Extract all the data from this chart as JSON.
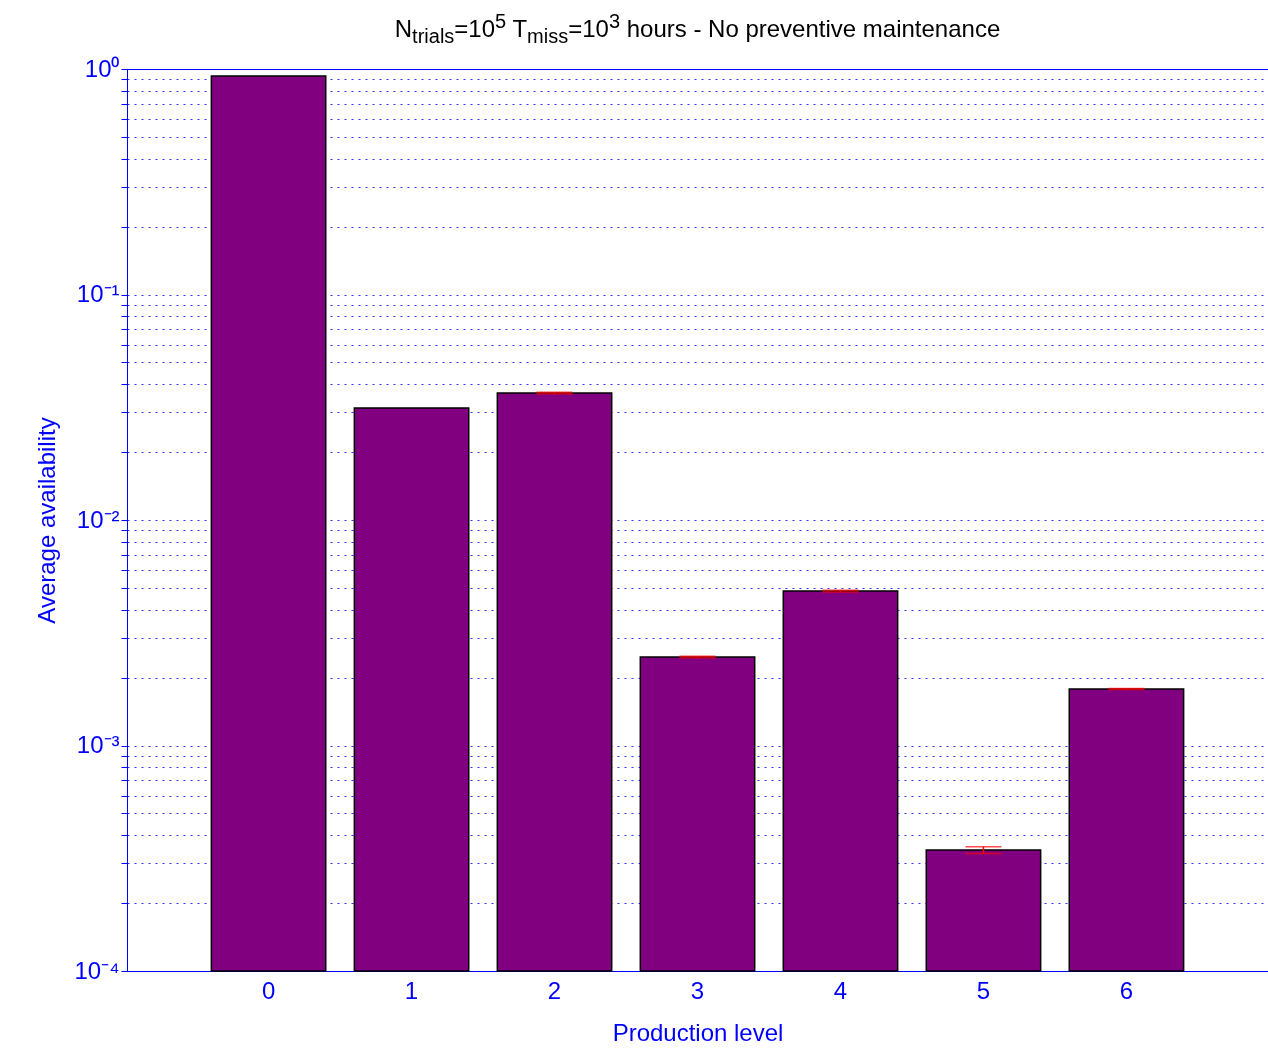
{
  "chart_data": {
    "type": "bar",
    "title": "N$_{trials}$=10$^{5}$ T$_{miss}$=10$^{3}$ hours - No preventive maintenance",
    "xlabel": "Production level",
    "ylabel": "Average availability",
    "categories": [
      "0",
      "1",
      "2",
      "3",
      "4",
      "5",
      "6"
    ],
    "values": [
      0.93,
      0.0314,
      0.0366,
      0.00247,
      0.00484,
      0.000344,
      0.00178
    ],
    "errors": [
      null,
      null,
      0.0003,
      2e-05,
      4e-05,
      1.2e-05,
      1e-05
    ],
    "color": "#800080",
    "log": true,
    "grid": "y",
    "ylim": [
      0.0001,
      1
    ],
    "yticks": [
      {
        "value": 0.0001,
        "label": "10⁻⁴"
      },
      {
        "value": 0.0002,
        "label": null
      },
      {
        "value": 0.0003,
        "label": null
      },
      {
        "value": 0.0004,
        "label": null
      },
      {
        "value": 0.0005,
        "label": null
      },
      {
        "value": 0.0006,
        "label": null
      },
      {
        "value": 0.0007,
        "label": null
      },
      {
        "value": 0.0008,
        "label": null
      },
      {
        "value": 0.0009,
        "label": null
      },
      {
        "value": 0.001,
        "label": "10⁻³"
      },
      {
        "value": 0.002,
        "label": null
      },
      {
        "value": 0.003,
        "label": null
      },
      {
        "value": 0.004,
        "label": null
      },
      {
        "value": 0.005,
        "label": null
      },
      {
        "value": 0.006,
        "label": null
      },
      {
        "value": 0.007,
        "label": null
      },
      {
        "value": 0.008,
        "label": null
      },
      {
        "value": 0.009,
        "label": null
      },
      {
        "value": 0.01,
        "label": "10⁻²"
      },
      {
        "value": 0.02,
        "label": null
      },
      {
        "value": 0.03,
        "label": null
      },
      {
        "value": 0.04,
        "label": null
      },
      {
        "value": 0.05,
        "label": null
      },
      {
        "value": 0.06,
        "label": null
      },
      {
        "value": 0.07,
        "label": null
      },
      {
        "value": 0.08,
        "label": null
      },
      {
        "value": 0.09,
        "label": null
      },
      {
        "value": 0.1,
        "label": "10⁻¹"
      },
      {
        "value": 0.2,
        "label": null
      },
      {
        "value": 0.3,
        "label": null
      },
      {
        "value": 0.4,
        "label": null
      },
      {
        "value": 0.5,
        "label": null
      },
      {
        "value": 0.6,
        "label": null
      },
      {
        "value": 0.7,
        "label": null
      },
      {
        "value": 0.8,
        "label": null
      },
      {
        "value": 0.9,
        "label": null
      },
      {
        "value": 1,
        "label": "10⁰"
      }
    ]
  }
}
